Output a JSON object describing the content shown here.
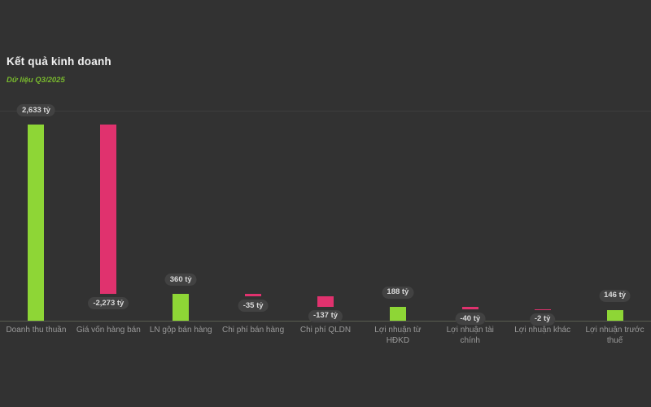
{
  "header": {
    "title": "Kết quả kinh doanh",
    "subtitle": "Dữ liệu Q3/2025"
  },
  "colors": {
    "background": "#323232",
    "positive_bar": "#8ed636",
    "negative_bar": "#e0326e",
    "badge_background": "#424242",
    "badge_text": "#d9d9d9",
    "axis_line": "#5a5d4f",
    "gridline": "#3e3e3e",
    "category_label": "#9a9a9a",
    "title_text": "#f2f2f2",
    "subtitle_text": "#79b92e"
  },
  "chart_data": {
    "type": "bar",
    "subtype": "waterfall",
    "title": "Kết quả kinh doanh",
    "subtitle": "Dữ liệu Q3/2025",
    "unit": "tỷ",
    "ylim": [
      0,
      2820
    ],
    "grid": "top gridline and baseline only",
    "legend": "none",
    "categories": [
      "Doanh thu thuần",
      "Giá vốn hàng bán",
      "LN gộp bán hàng",
      "Chi phí bán hàng",
      "Chi phí QLDN",
      "Lợi nhuận từ HĐKD",
      "Lợi nhuận tài chính",
      "Lợi nhuận khác",
      "Lợi nhuận trước thuế"
    ],
    "items": [
      {
        "label": "Doanh thu thuần",
        "value": 2633,
        "value_label": "2,633 tỷ",
        "direction": "positive",
        "level_from": 0,
        "level_to": 2633
      },
      {
        "label": "Giá vốn hàng bán",
        "value": -2273,
        "value_label": "-2,273 tỷ",
        "direction": "negative",
        "level_from": 2633,
        "level_to": 360
      },
      {
        "label": "LN gộp bán hàng",
        "value": 360,
        "value_label": "360 tỷ",
        "direction": "positive",
        "level_from": 0,
        "level_to": 360
      },
      {
        "label": "Chi phí bán hàng",
        "value": -35,
        "value_label": "-35 tỷ",
        "direction": "negative",
        "level_from": 360,
        "level_to": 325
      },
      {
        "label": "Chi phí QLDN",
        "value": -137,
        "value_label": "-137 tỷ",
        "direction": "negative",
        "level_from": 325,
        "level_to": 188
      },
      {
        "label": "Lợi nhuận từ HĐKD",
        "value": 188,
        "value_label": "188 tỷ",
        "direction": "positive",
        "level_from": 0,
        "level_to": 188
      },
      {
        "label": "Lợi nhuận tài chính",
        "value": -40,
        "value_label": "-40 tỷ",
        "direction": "negative",
        "level_from": 188,
        "level_to": 148
      },
      {
        "label": "Lợi nhuận khác",
        "value": -2,
        "value_label": "-2 tỷ",
        "direction": "negative",
        "level_from": 148,
        "level_to": 146
      },
      {
        "label": "Lợi nhuận trước thuế",
        "value": 146,
        "value_label": "146 tỷ",
        "direction": "positive",
        "level_from": 0,
        "level_to": 146
      }
    ]
  }
}
